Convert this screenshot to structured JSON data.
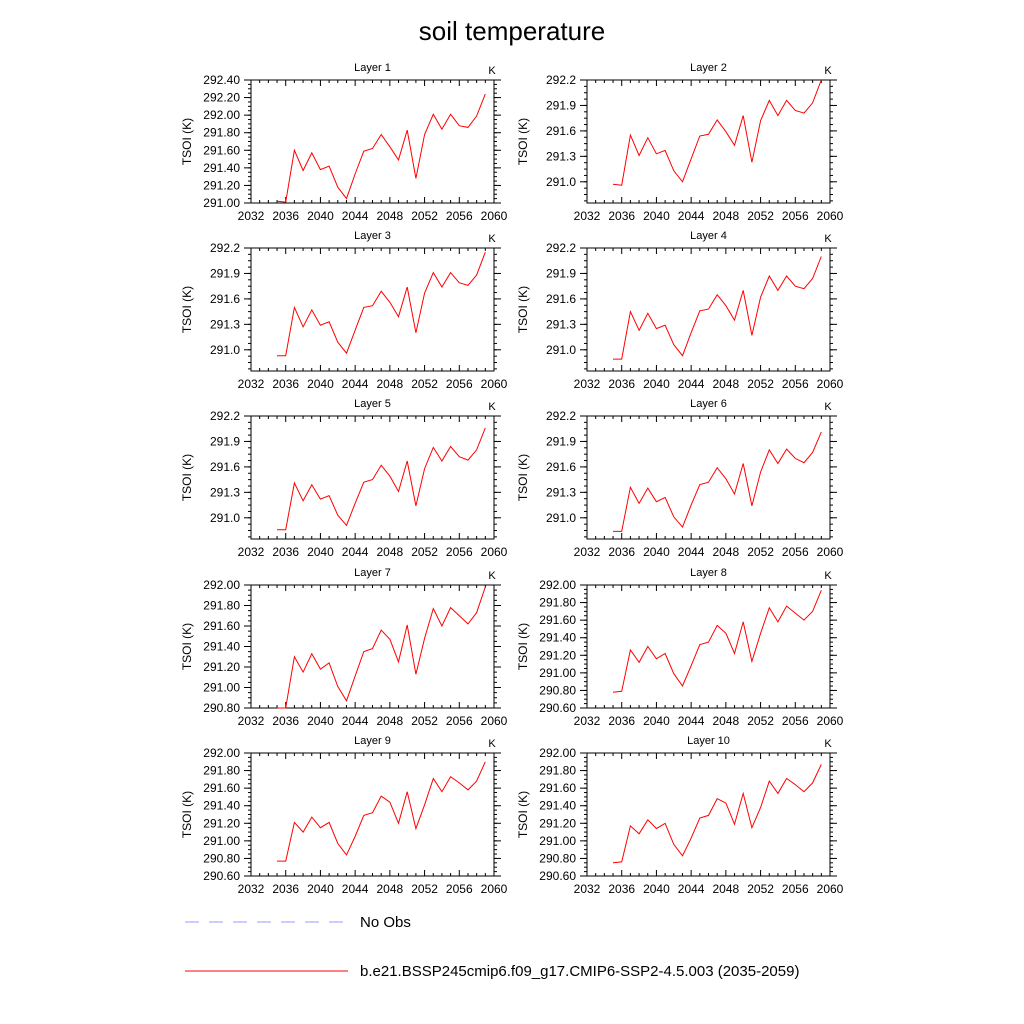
{
  "figure": {
    "title": "soil temperature"
  },
  "legend": [
    {
      "label": "No Obs",
      "color": "#9999ff",
      "dash": true
    },
    {
      "label": "b.e21.BSSP245cmip6.f09_g17.CMIP6-SSP2-4.5.003 (2035-2059)",
      "color": "#ff0000",
      "dash": false
    }
  ],
  "chart_data": [
    {
      "type": "line",
      "title": "Layer 1",
      "units": "K",
      "ylabel": "TSOI  (K)",
      "xlim": [
        2032,
        2060
      ],
      "ylim": [
        291.0,
        292.4
      ],
      "xticks": [
        2032,
        2036,
        2040,
        2044,
        2048,
        2052,
        2056,
        2060
      ],
      "yticks": [
        "291.00",
        "291.20",
        "291.40",
        "291.60",
        "291.80",
        "292.00",
        "292.20",
        "292.40"
      ],
      "series": [
        {
          "x": [
            2035,
            2036,
            2037,
            2038,
            2039,
            2040,
            2041,
            2042,
            2043,
            2044,
            2045,
            2046,
            2047,
            2048,
            2049,
            2050,
            2051,
            2052,
            2053,
            2054,
            2055,
            2056,
            2057,
            2058,
            2059
          ],
          "values": [
            291.02,
            291.01,
            291.6,
            291.37,
            291.57,
            291.38,
            291.42,
            291.18,
            291.05,
            291.33,
            291.59,
            291.62,
            291.78,
            291.64,
            291.49,
            291.83,
            291.28,
            291.78,
            292.01,
            291.84,
            292.01,
            291.88,
            291.86,
            291.99,
            292.24
          ]
        }
      ]
    },
    {
      "type": "line",
      "title": "Layer 2",
      "units": "K",
      "ylabel": "TSOI  (K)",
      "xlim": [
        2032,
        2060
      ],
      "ylim": [
        290.75,
        292.2
      ],
      "xticks": [
        2032,
        2036,
        2040,
        2044,
        2048,
        2052,
        2056,
        2060
      ],
      "yticks": [
        "291.0",
        "291.3",
        "291.6",
        "291.9",
        "292.2"
      ],
      "series": [
        {
          "x": [
            2035,
            2036,
            2037,
            2038,
            2039,
            2040,
            2041,
            2042,
            2043,
            2044,
            2045,
            2046,
            2047,
            2048,
            2049,
            2050,
            2051,
            2052,
            2053,
            2054,
            2055,
            2056,
            2057,
            2058,
            2059
          ],
          "values": [
            290.97,
            290.96,
            291.55,
            291.31,
            291.52,
            291.33,
            291.37,
            291.13,
            291.0,
            291.27,
            291.54,
            291.56,
            291.73,
            291.59,
            291.43,
            291.78,
            291.23,
            291.72,
            291.96,
            291.78,
            291.96,
            291.84,
            291.81,
            291.93,
            292.2
          ]
        }
      ]
    },
    {
      "type": "line",
      "title": "Layer 3",
      "units": "K",
      "ylabel": "TSOI  (K)",
      "xlim": [
        2032,
        2060
      ],
      "ylim": [
        290.75,
        292.2
      ],
      "xticks": [
        2032,
        2036,
        2040,
        2044,
        2048,
        2052,
        2056,
        2060
      ],
      "yticks": [
        "291.0",
        "291.3",
        "291.6",
        "291.9",
        "292.2"
      ],
      "series": [
        {
          "x": [
            2035,
            2036,
            2037,
            2038,
            2039,
            2040,
            2041,
            2042,
            2043,
            2044,
            2045,
            2046,
            2047,
            2048,
            2049,
            2050,
            2051,
            2052,
            2053,
            2054,
            2055,
            2056,
            2057,
            2058,
            2059
          ],
          "values": [
            290.93,
            290.93,
            291.5,
            291.27,
            291.47,
            291.29,
            291.33,
            291.09,
            290.96,
            291.23,
            291.5,
            291.52,
            291.69,
            291.56,
            291.39,
            291.74,
            291.2,
            291.67,
            291.91,
            291.74,
            291.91,
            291.79,
            291.76,
            291.88,
            292.15
          ]
        }
      ]
    },
    {
      "type": "line",
      "title": "Layer 4",
      "units": "K",
      "ylabel": "TSOI  (K)",
      "xlim": [
        2032,
        2060
      ],
      "ylim": [
        290.75,
        292.2
      ],
      "xticks": [
        2032,
        2036,
        2040,
        2044,
        2048,
        2052,
        2056,
        2060
      ],
      "yticks": [
        "291.0",
        "291.3",
        "291.6",
        "291.9",
        "292.2"
      ],
      "series": [
        {
          "x": [
            2035,
            2036,
            2037,
            2038,
            2039,
            2040,
            2041,
            2042,
            2043,
            2044,
            2045,
            2046,
            2047,
            2048,
            2049,
            2050,
            2051,
            2052,
            2053,
            2054,
            2055,
            2056,
            2057,
            2058,
            2059
          ],
          "values": [
            290.89,
            290.89,
            291.45,
            291.23,
            291.43,
            291.25,
            291.29,
            291.06,
            290.93,
            291.2,
            291.46,
            291.48,
            291.65,
            291.52,
            291.35,
            291.7,
            291.17,
            291.62,
            291.87,
            291.7,
            291.87,
            291.75,
            291.72,
            291.84,
            292.1
          ]
        }
      ]
    },
    {
      "type": "line",
      "title": "Layer 5",
      "units": "K",
      "ylabel": "TSOI  (K)",
      "xlim": [
        2032,
        2060
      ],
      "ylim": [
        290.75,
        292.2
      ],
      "xticks": [
        2032,
        2036,
        2040,
        2044,
        2048,
        2052,
        2056,
        2060
      ],
      "yticks": [
        "291.0",
        "291.3",
        "291.6",
        "291.9",
        "292.2"
      ],
      "series": [
        {
          "x": [
            2035,
            2036,
            2037,
            2038,
            2039,
            2040,
            2041,
            2042,
            2043,
            2044,
            2045,
            2046,
            2047,
            2048,
            2049,
            2050,
            2051,
            2052,
            2053,
            2054,
            2055,
            2056,
            2057,
            2058,
            2059
          ],
          "values": [
            290.86,
            290.86,
            291.41,
            291.2,
            291.39,
            291.22,
            291.26,
            291.03,
            290.91,
            291.17,
            291.42,
            291.45,
            291.62,
            291.49,
            291.31,
            291.67,
            291.14,
            291.58,
            291.83,
            291.67,
            291.84,
            291.72,
            291.68,
            291.8,
            292.06
          ]
        }
      ]
    },
    {
      "type": "line",
      "title": "Layer 6",
      "units": "K",
      "ylabel": "TSOI  (K)",
      "xlim": [
        2032,
        2060
      ],
      "ylim": [
        290.75,
        292.2
      ],
      "xticks": [
        2032,
        2036,
        2040,
        2044,
        2048,
        2052,
        2056,
        2060
      ],
      "yticks": [
        "291.0",
        "291.3",
        "291.6",
        "291.9",
        "292.2"
      ],
      "series": [
        {
          "x": [
            2035,
            2036,
            2037,
            2038,
            2039,
            2040,
            2041,
            2042,
            2043,
            2044,
            2045,
            2046,
            2047,
            2048,
            2049,
            2050,
            2051,
            2052,
            2053,
            2054,
            2055,
            2056,
            2057,
            2058,
            2059
          ],
          "values": [
            290.84,
            290.84,
            291.36,
            291.17,
            291.35,
            291.19,
            291.24,
            291.01,
            290.89,
            291.15,
            291.39,
            291.42,
            291.59,
            291.46,
            291.28,
            291.64,
            291.14,
            291.54,
            291.8,
            291.64,
            291.81,
            291.7,
            291.65,
            291.77,
            292.01
          ]
        }
      ]
    },
    {
      "type": "line",
      "title": "Layer 7",
      "units": "K",
      "ylabel": "TSOI  (K)",
      "xlim": [
        2032,
        2060
      ],
      "ylim": [
        290.8,
        292.0
      ],
      "xticks": [
        2032,
        2036,
        2040,
        2044,
        2048,
        2052,
        2056,
        2060
      ],
      "yticks": [
        "290.80",
        "291.00",
        "291.20",
        "291.40",
        "291.60",
        "291.80",
        "292.00"
      ],
      "series": [
        {
          "x": [
            2035,
            2036,
            2037,
            2038,
            2039,
            2040,
            2041,
            2042,
            2043,
            2044,
            2045,
            2046,
            2047,
            2048,
            2049,
            2050,
            2051,
            2052,
            2053,
            2054,
            2055,
            2056,
            2057,
            2058,
            2059
          ],
          "values": [
            290.8,
            290.8,
            291.3,
            291.15,
            291.33,
            291.18,
            291.24,
            291.01,
            290.87,
            291.11,
            291.35,
            291.38,
            291.56,
            291.47,
            291.25,
            291.61,
            291.13,
            291.48,
            291.77,
            291.6,
            291.78,
            291.7,
            291.62,
            291.73,
            291.98
          ]
        }
      ]
    },
    {
      "type": "line",
      "title": "Layer 8",
      "units": "K",
      "ylabel": "TSOI  (K)",
      "xlim": [
        2032,
        2060
      ],
      "ylim": [
        290.6,
        292.0
      ],
      "xticks": [
        2032,
        2036,
        2040,
        2044,
        2048,
        2052,
        2056,
        2060
      ],
      "yticks": [
        "290.60",
        "290.80",
        "291.00",
        "291.20",
        "291.40",
        "291.60",
        "291.80",
        "292.00"
      ],
      "series": [
        {
          "x": [
            2035,
            2036,
            2037,
            2038,
            2039,
            2040,
            2041,
            2042,
            2043,
            2044,
            2045,
            2046,
            2047,
            2048,
            2049,
            2050,
            2051,
            2052,
            2053,
            2054,
            2055,
            2056,
            2057,
            2058,
            2059
          ],
          "values": [
            290.78,
            290.79,
            291.26,
            291.12,
            291.3,
            291.16,
            291.22,
            290.99,
            290.85,
            291.08,
            291.32,
            291.35,
            291.54,
            291.45,
            291.22,
            291.58,
            291.13,
            291.45,
            291.74,
            291.58,
            291.76,
            291.68,
            291.6,
            291.7,
            291.94
          ]
        }
      ]
    },
    {
      "type": "line",
      "title": "Layer 9",
      "units": "K",
      "ylabel": "TSOI  (K)",
      "xlim": [
        2032,
        2060
      ],
      "ylim": [
        290.6,
        292.0
      ],
      "xticks": [
        2032,
        2036,
        2040,
        2044,
        2048,
        2052,
        2056,
        2060
      ],
      "yticks": [
        "290.60",
        "290.80",
        "291.00",
        "291.20",
        "291.40",
        "291.60",
        "291.80",
        "292.00"
      ],
      "series": [
        {
          "x": [
            2035,
            2036,
            2037,
            2038,
            2039,
            2040,
            2041,
            2042,
            2043,
            2044,
            2045,
            2046,
            2047,
            2048,
            2049,
            2050,
            2051,
            2052,
            2053,
            2054,
            2055,
            2056,
            2057,
            2058,
            2059
          ],
          "values": [
            290.77,
            290.77,
            291.21,
            291.1,
            291.27,
            291.15,
            291.21,
            290.97,
            290.84,
            291.05,
            291.29,
            291.32,
            291.51,
            291.44,
            291.2,
            291.56,
            291.14,
            291.41,
            291.71,
            291.56,
            291.73,
            291.66,
            291.58,
            291.68,
            291.9
          ]
        }
      ]
    },
    {
      "type": "line",
      "title": "Layer 10",
      "units": "K",
      "ylabel": "TSOI  (K)",
      "xlim": [
        2032,
        2060
      ],
      "ylim": [
        290.6,
        292.0
      ],
      "xticks": [
        2032,
        2036,
        2040,
        2044,
        2048,
        2052,
        2056,
        2060
      ],
      "yticks": [
        "290.60",
        "290.80",
        "291.00",
        "291.20",
        "291.40",
        "291.60",
        "291.80",
        "292.00"
      ],
      "series": [
        {
          "x": [
            2035,
            2036,
            2037,
            2038,
            2039,
            2040,
            2041,
            2042,
            2043,
            2044,
            2045,
            2046,
            2047,
            2048,
            2049,
            2050,
            2051,
            2052,
            2053,
            2054,
            2055,
            2056,
            2057,
            2058,
            2059
          ],
          "values": [
            290.75,
            290.76,
            291.17,
            291.08,
            291.24,
            291.14,
            291.2,
            290.96,
            290.83,
            291.03,
            291.26,
            291.29,
            291.48,
            291.43,
            291.19,
            291.54,
            291.15,
            291.38,
            291.68,
            291.54,
            291.71,
            291.64,
            291.56,
            291.66,
            291.87
          ]
        }
      ]
    }
  ]
}
